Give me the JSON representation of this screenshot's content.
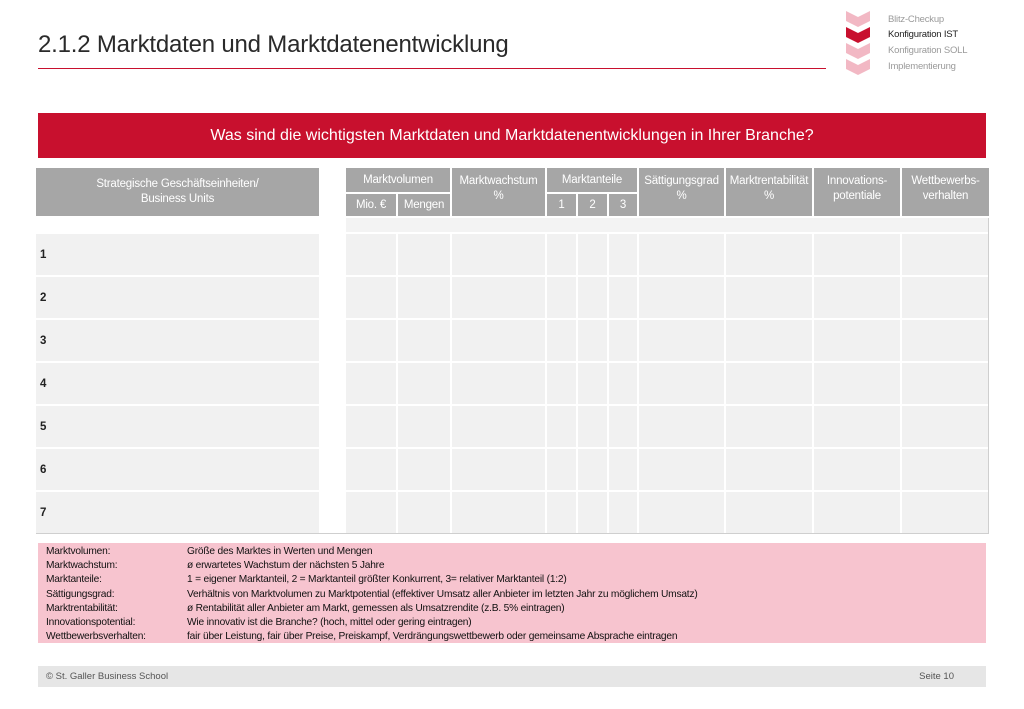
{
  "header": {
    "title": "2.1.2 Marktdaten und Marktdatenentwicklung"
  },
  "nav": {
    "items": [
      {
        "label": "Blitz-Checkup",
        "active": false
      },
      {
        "label": "Konfiguration IST",
        "active": true
      },
      {
        "label": "Konfiguration SOLL",
        "active": false
      },
      {
        "label": "Implementierung",
        "active": false
      }
    ],
    "colors": {
      "muted": "#f2b8c4",
      "active": "#c8102e"
    }
  },
  "banner": {
    "text": "Was sind die wichtigsten Marktdaten und Marktdatenentwicklungen in Ihrer Branche?"
  },
  "table": {
    "headers": {
      "units": "Strategische Geschäftseinheiten/\nBusiness Units",
      "volume": "Marktvolumen",
      "volume_mio": "Mio. €",
      "volume_mengen": "Mengen",
      "growth": "Marktwachstum\n%",
      "share": "Marktanteile",
      "share_1": "1",
      "share_2": "2",
      "share_3": "3",
      "saturation": "Sättigungsgrad\n%",
      "profitability": "Marktrentabilität\n%",
      "innovation": "Innovations-\npotentiale",
      "competition": "Wettbewerbs-\nverhalten"
    },
    "rows": [
      "1",
      "2",
      "3",
      "4",
      "5",
      "6",
      "7"
    ]
  },
  "legend": [
    {
      "term": "Marktvolumen:",
      "def": "Größe des Marktes in Werten und Mengen"
    },
    {
      "term": "Marktwachstum:",
      "def": "ø erwartetes Wachstum der nächsten 5 Jahre"
    },
    {
      "term": "Marktanteile:",
      "def": "1 = eigener Marktanteil, 2 = Marktanteil größter Konkurrent, 3= relativer Marktanteil (1:2)"
    },
    {
      "term": "Sättigungsgrad:",
      "def": "Verhältnis von Marktvolumen zu Marktpotential (effektiver Umsatz aller Anbieter im letzten Jahr zu möglichem Umsatz)"
    },
    {
      "term": "Marktrentabilität:",
      "def": "ø Rentabilität aller Anbieter am Markt, gemessen als Umsatzrendite (z.B. 5% eintragen)"
    },
    {
      "term": "Innovationspotential:",
      "def": "Wie innovativ ist die Branche? (hoch, mittel oder gering eintragen)"
    },
    {
      "term": "Wettbewerbsverhalten:",
      "def": "fair über Leistung, fair über Preise, Preiskampf, Verdrängungswettbewerb oder gemeinsame Absprache eintragen"
    }
  ],
  "footer": {
    "copyright": "© St. Galler Business School",
    "page": "Seite 10"
  }
}
